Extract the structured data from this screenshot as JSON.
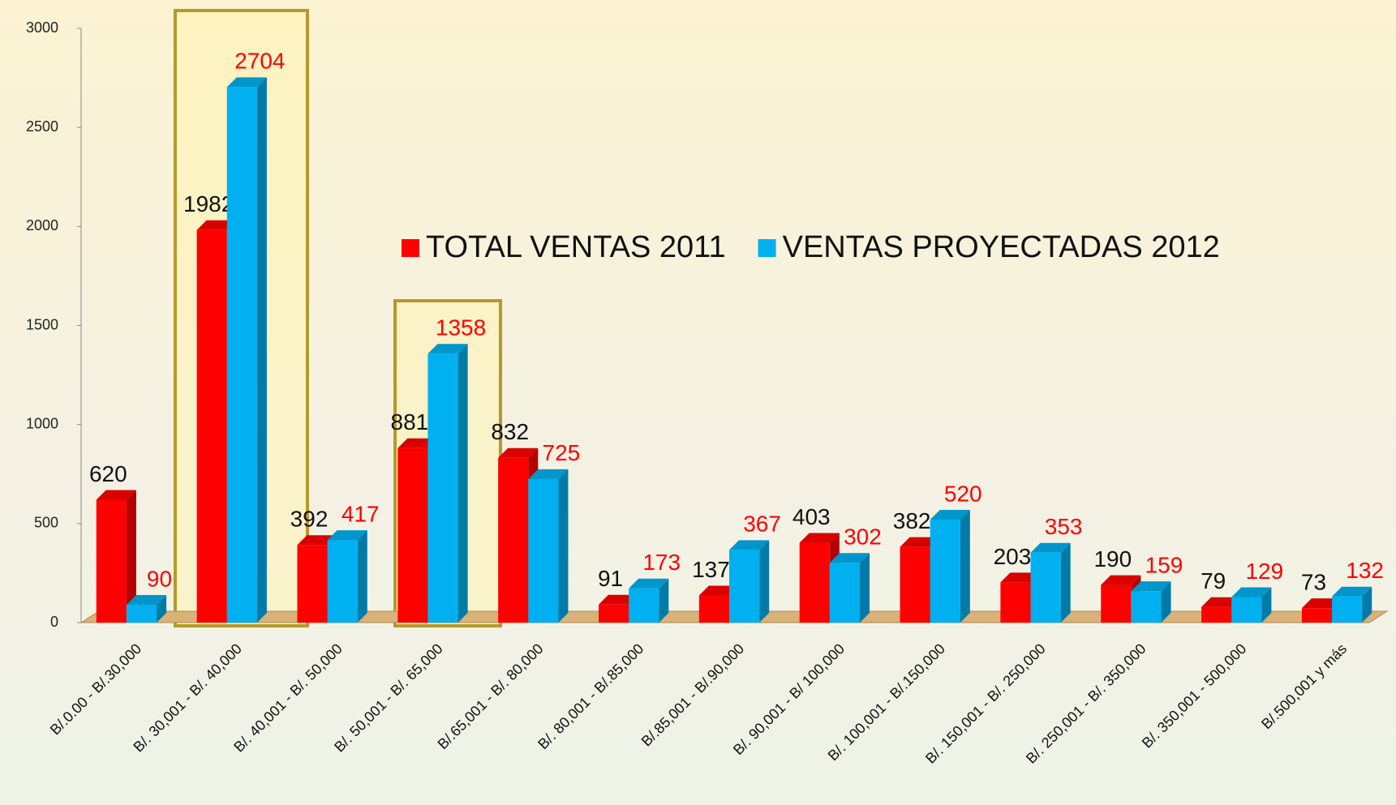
{
  "chart_data": {
    "type": "bar",
    "categories": [
      "B/.0.00 - B/.30,000",
      "B/. 30,001 - B/. 40,000",
      "B/. 40,001 - B/. 50,000",
      "B/. 50,001 - B/. 65,000",
      "B/.65,001 - B/. 80,000",
      "B/. 80,001 - B/.85,000",
      "B/.85,001 - B/.90,000",
      "B/. 90,001 - B/ 100,000",
      "B/. 100,001 - B/.150,000",
      "B/. 150,001 - B/. 250,000",
      "B/. 250,001 - B/. 350,000",
      "B/. 350,001 - 500,000",
      "B/.500,001 y más"
    ],
    "series": [
      {
        "name": "TOTAL VENTAS 2011",
        "color": "#ff0000",
        "values": [
          620,
          1982,
          392,
          881,
          832,
          91,
          137,
          403,
          382,
          203,
          190,
          79,
          73
        ]
      },
      {
        "name": "VENTAS PROYECTADAS 2012",
        "color": "#00b0f0",
        "values": [
          90,
          2704,
          417,
          1358,
          725,
          173,
          367,
          302,
          520,
          353,
          159,
          129,
          132
        ]
      }
    ],
    "ylim": [
      0,
      3000
    ],
    "yticks": [
      0,
      500,
      1000,
      1500,
      2000,
      2500,
      3000
    ]
  }
}
